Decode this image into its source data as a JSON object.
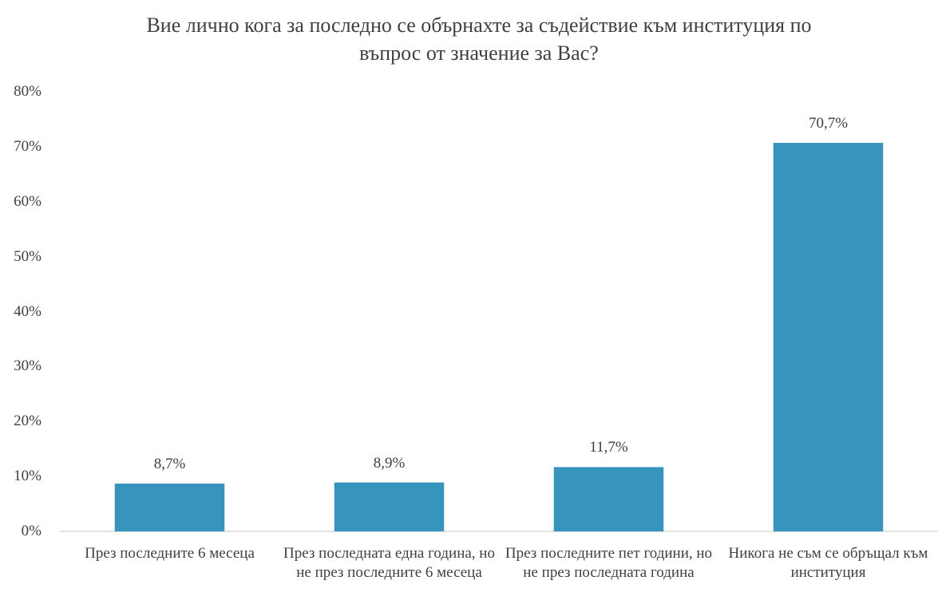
{
  "chart_data": {
    "type": "bar",
    "title": "Вие лично кога за последно се обърнахте за съдействие към институция по въпрос от значение за Вас?",
    "categories": [
      "През последните 6 месеца",
      "През последната една година, но не през последните 6 месеца",
      "През последните пет години, но не през последната година",
      "Никога не съм се обръщал към институция"
    ],
    "values": [
      8.7,
      8.9,
      11.7,
      70.7
    ],
    "value_labels": [
      "8,7%",
      "8,9%",
      "11,7%",
      "70,7%"
    ],
    "color": "#3795bd",
    "ylim": [
      0,
      80
    ],
    "yticks": [
      {
        "value": 0,
        "label": "0%"
      },
      {
        "value": 10,
        "label": "10%"
      },
      {
        "value": 20,
        "label": "20%"
      },
      {
        "value": 30,
        "label": "30%"
      },
      {
        "value": 40,
        "label": "40%"
      },
      {
        "value": 50,
        "label": "50%"
      },
      {
        "value": 60,
        "label": "60%"
      },
      {
        "value": 70,
        "label": "70%"
      },
      {
        "value": 80,
        "label": "80%"
      }
    ],
    "grid": false
  }
}
